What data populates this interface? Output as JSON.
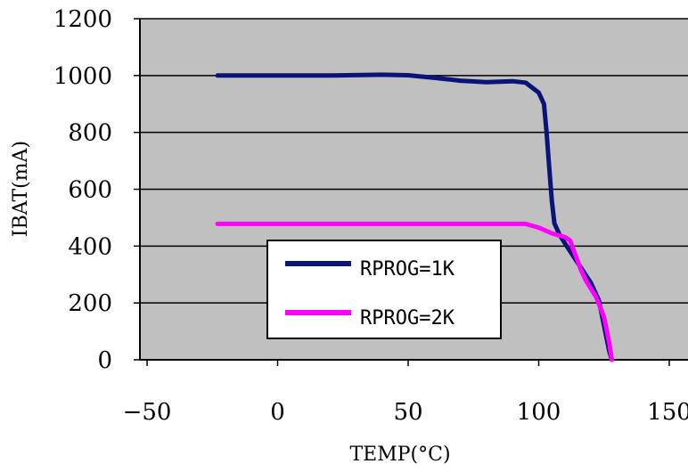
{
  "chart_data": {
    "type": "line",
    "title": "",
    "xlabel": "TEMP(°C)",
    "ylabel": "IBAT(mA)",
    "xlim": [
      -50,
      150
    ],
    "ylim": [
      0,
      1200
    ],
    "x_ticks": [
      -50,
      0,
      50,
      100,
      150
    ],
    "y_ticks": [
      0,
      200,
      400,
      600,
      800,
      1000,
      1200
    ],
    "x_tick_labels": [
      "−50",
      "0",
      "50",
      "100",
      "150"
    ],
    "y_tick_labels": [
      "0",
      "200",
      "400",
      "600",
      "800",
      "1000",
      "1200"
    ],
    "grid": "horizontal",
    "legend_position": "lower-center",
    "series": [
      {
        "name": "RPROG=1K",
        "color": "#0a1478",
        "points": [
          [
            -23,
            1000
          ],
          [
            0,
            1000
          ],
          [
            20,
            1000
          ],
          [
            40,
            1003
          ],
          [
            50,
            1001
          ],
          [
            60,
            992
          ],
          [
            70,
            982
          ],
          [
            80,
            977
          ],
          [
            90,
            980
          ],
          [
            95,
            975
          ],
          [
            100,
            940
          ],
          [
            102,
            900
          ],
          [
            103,
            800
          ],
          [
            104,
            680
          ],
          [
            105,
            560
          ],
          [
            106,
            480
          ],
          [
            108,
            440
          ],
          [
            110,
            410
          ],
          [
            115,
            340
          ],
          [
            120,
            270
          ],
          [
            123,
            210
          ],
          [
            125,
            120
          ],
          [
            127,
            30
          ],
          [
            128,
            0
          ]
        ]
      },
      {
        "name": "RPROG=2K",
        "color": "#ff00ff",
        "points": [
          [
            -23,
            478
          ],
          [
            0,
            478
          ],
          [
            30,
            478
          ],
          [
            60,
            478
          ],
          [
            95,
            478
          ],
          [
            100,
            465
          ],
          [
            105,
            445
          ],
          [
            110,
            432
          ],
          [
            112,
            420
          ],
          [
            116,
            320
          ],
          [
            118,
            280
          ],
          [
            122,
            220
          ],
          [
            125,
            150
          ],
          [
            127,
            60
          ],
          [
            128,
            0
          ]
        ]
      }
    ]
  }
}
